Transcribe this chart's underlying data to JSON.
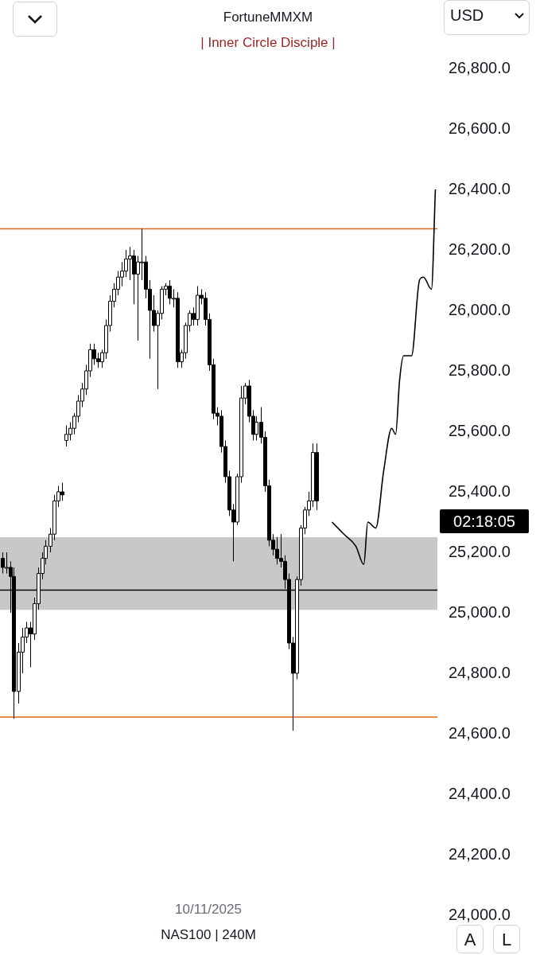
{
  "chart_data": {
    "type": "candlestick",
    "title": "FortuneMMXM",
    "subtitle": "| Inner Circle Disciple |",
    "annotations": [
      "02:18:05",
      "10/11/2025",
      "NAS100 | 240M",
      "USD",
      "A",
      "L"
    ],
    "categories": [
      null,
      null,
      null,
      null,
      null,
      null,
      null,
      null,
      null,
      null,
      null,
      null,
      null,
      null,
      null,
      null,
      null,
      null,
      null,
      null,
      null,
      null,
      null,
      null,
      null,
      null,
      null,
      null,
      null,
      null,
      null,
      null,
      null,
      null,
      null,
      null,
      null,
      null,
      null,
      null,
      null,
      null,
      null,
      null,
      null,
      null,
      null,
      null,
      null,
      null,
      null,
      null,
      null,
      null,
      null,
      null,
      null,
      null,
      null,
      null,
      null,
      null,
      null,
      null,
      null,
      null,
      null,
      null,
      null,
      null,
      null,
      null,
      null,
      null,
      null,
      null,
      null,
      null,
      null,
      null,
      null,
      null,
      null,
      null,
      null,
      null,
      null,
      null,
      null,
      null,
      null,
      null,
      null,
      null,
      null,
      null,
      null,
      null,
      null,
      null,
      null,
      null,
      null,
      null,
      null,
      null,
      null,
      null,
      null,
      null
    ],
    "ohlc": [
      [
        25180,
        25200,
        25130,
        25150
      ],
      [
        25150,
        25200,
        25130,
        25150
      ],
      [
        25150,
        25170,
        25000,
        25120
      ],
      [
        25120,
        25150,
        24650,
        24740
      ],
      [
        24740,
        24900,
        24700,
        24870
      ],
      [
        24870,
        24950,
        24800,
        24920
      ],
      [
        24920,
        24970,
        24900,
        24950
      ],
      [
        24950,
        24970,
        24820,
        24930
      ],
      [
        24930,
        25050,
        24910,
        25030
      ],
      [
        25030,
        25150,
        25010,
        25130
      ],
      [
        25130,
        25200,
        25110,
        25180
      ],
      [
        25180,
        25240,
        25160,
        25220
      ],
      [
        25220,
        25280,
        25200,
        25260
      ],
      [
        25260,
        25390,
        25240,
        25370
      ],
      [
        25370,
        25420,
        25350,
        25400
      ],
      [
        25400,
        25430,
        25370,
        25390
      ],
      [
        25570,
        25620,
        25550,
        25590
      ],
      [
        25590,
        25630,
        25570,
        25610
      ],
      [
        25610,
        25660,
        25590,
        25650
      ],
      [
        25650,
        25720,
        25630,
        25700
      ],
      [
        25700,
        25760,
        25680,
        25740
      ],
      [
        25740,
        25820,
        25720,
        25800
      ],
      [
        25800,
        25890,
        25780,
        25870
      ],
      [
        25870,
        25890,
        25820,
        25840
      ],
      [
        25840,
        25860,
        25810,
        25830
      ],
      [
        25830,
        25870,
        25810,
        25860
      ],
      [
        25860,
        25970,
        25840,
        25950
      ],
      [
        25950,
        26050,
        25930,
        26030
      ],
      [
        26030,
        26090,
        26010,
        26070
      ],
      [
        26070,
        26130,
        26050,
        26110
      ],
      [
        26110,
        26160,
        26080,
        26130
      ],
      [
        26130,
        26200,
        26110,
        26170
      ],
      [
        26170,
        26210,
        26100,
        26180
      ],
      [
        26180,
        26200,
        26020,
        26120
      ],
      [
        26120,
        26180,
        25900,
        26160
      ],
      [
        26160,
        26270,
        26100,
        26160
      ],
      [
        26160,
        26180,
        26040,
        26070
      ],
      [
        26070,
        26100,
        25840,
        26000
      ],
      [
        26000,
        26050,
        25930,
        25950
      ],
      [
        25950,
        26000,
        25740,
        25990
      ],
      [
        25990,
        26080,
        25970,
        26070
      ],
      [
        26070,
        26090,
        26050,
        26080
      ],
      [
        26080,
        26100,
        26020,
        26040
      ],
      [
        26040,
        26070,
        26010,
        26040
      ],
      [
        26040,
        26060,
        25810,
        25830
      ],
      [
        25830,
        25870,
        25810,
        25860
      ],
      [
        25860,
        25960,
        25840,
        25950
      ],
      [
        25950,
        26000,
        25930,
        25990
      ],
      [
        25990,
        26010,
        25950,
        25970
      ],
      [
        25970,
        26080,
        25950,
        26050
      ],
      [
        26050,
        26070,
        26020,
        26040
      ],
      [
        26040,
        26060,
        25950,
        25970
      ],
      [
        25970,
        25990,
        25800,
        25820
      ],
      [
        25820,
        25840,
        25640,
        25660
      ],
      [
        25660,
        25680,
        25620,
        25650
      ],
      [
        25650,
        25670,
        25530,
        25550
      ],
      [
        25550,
        25570,
        25430,
        25450
      ],
      [
        25450,
        25470,
        25320,
        25340
      ],
      [
        25340,
        25360,
        25170,
        25300
      ],
      [
        25300,
        25460,
        25290,
        25450
      ],
      [
        25450,
        25750,
        25430,
        25710
      ],
      [
        25710,
        25760,
        25690,
        25750
      ],
      [
        25750,
        25770,
        25630,
        25650
      ],
      [
        25650,
        25670,
        25570,
        25590
      ],
      [
        25590,
        25650,
        25570,
        25630
      ],
      [
        25630,
        25680,
        25560,
        25580
      ],
      [
        25580,
        25600,
        25400,
        25420
      ],
      [
        25420,
        25440,
        25220,
        25240
      ],
      [
        25240,
        25260,
        25190,
        25210
      ],
      [
        25210,
        25250,
        25160,
        25180
      ],
      [
        25180,
        25260,
        25150,
        25170
      ],
      [
        25170,
        25190,
        25080,
        25110
      ],
      [
        25110,
        25130,
        24880,
        24900
      ],
      [
        24900,
        24920,
        24610,
        24800
      ],
      [
        24800,
        25120,
        24780,
        25110
      ],
      [
        25110,
        25290,
        25090,
        25280
      ],
      [
        25280,
        25350,
        25260,
        25340
      ],
      [
        25340,
        25400,
        25320,
        25370
      ],
      [
        25370,
        25560,
        25350,
        25530
      ],
      [
        25530,
        25560,
        25340,
        25370
      ],
      null,
      null,
      null,
      null,
      null,
      null,
      null,
      null,
      null,
      null,
      null,
      null,
      null,
      null,
      null,
      null,
      null,
      null,
      null,
      null,
      null,
      null,
      null,
      null,
      null,
      null,
      null,
      null,
      null,
      null
    ],
    "series": [
      {
        "type": "line",
        "color": "#000000",
        "values": [
          null,
          null,
          null,
          null,
          null,
          null,
          null,
          null,
          null,
          null,
          null,
          null,
          null,
          null,
          null,
          null,
          null,
          null,
          null,
          null,
          null,
          null,
          null,
          null,
          null,
          null,
          null,
          null,
          null,
          null,
          null,
          null,
          null,
          null,
          null,
          null,
          null,
          null,
          null,
          null,
          null,
          null,
          null,
          null,
          null,
          null,
          null,
          null,
          null,
          null,
          null,
          null,
          null,
          null,
          null,
          null,
          null,
          null,
          null,
          null,
          null,
          null,
          null,
          null,
          null,
          null,
          null,
          null,
          null,
          null,
          null,
          null,
          null,
          null,
          null,
          null,
          null,
          null,
          null,
          null,
          null,
          null,
          null,
          25300,
          null,
          null,
          25260,
          null,
          null,
          25220,
          null,
          25160,
          25300,
          null,
          25280,
          null,
          25470,
          null,
          25610,
          25590,
          25770,
          25850,
          null,
          25850,
          null,
          26100,
          26110,
          null,
          26070,
          26400
        ]
      }
    ],
    "ylim": [
      24000,
      26800
    ],
    "yticks": [
      {
        "value": 24000,
        "label": "24,000.0"
      },
      {
        "value": 24200,
        "label": "24,200.0"
      },
      {
        "value": 24400,
        "label": "24,400.0"
      },
      {
        "value": 24600,
        "label": "24,600.0"
      },
      {
        "value": 24800,
        "label": "24,800.0"
      },
      {
        "value": 25000,
        "label": "25,000.0"
      },
      {
        "value": 25200,
        "label": "25,200.0"
      },
      {
        "value": 25400,
        "label": "25,400.0"
      },
      {
        "value": 25600,
        "label": "25,600.0"
      },
      {
        "value": 25800,
        "label": "25,800.0"
      },
      {
        "value": 26000,
        "label": "26,000.0"
      },
      {
        "value": 26200,
        "label": "26,200.0"
      },
      {
        "value": 26400,
        "label": "26,400.0"
      },
      {
        "value": 26600,
        "label": "26,600.0"
      },
      {
        "value": 26800,
        "label": "26,800.0"
      }
    ],
    "ref_lines": [
      {
        "axis": "y",
        "value": 26270,
        "color": "#e0661f"
      },
      {
        "axis": "y",
        "value": 24655,
        "color": "#e0661f"
      },
      {
        "axis": "y",
        "value": 25075,
        "color": "#000000"
      }
    ],
    "bands": [
      {
        "axis": "y",
        "from": 25010,
        "to": 25250,
        "color": "#c8c8c8"
      }
    ],
    "tick_labels": "y",
    "grid": false,
    "legend": false
  }
}
